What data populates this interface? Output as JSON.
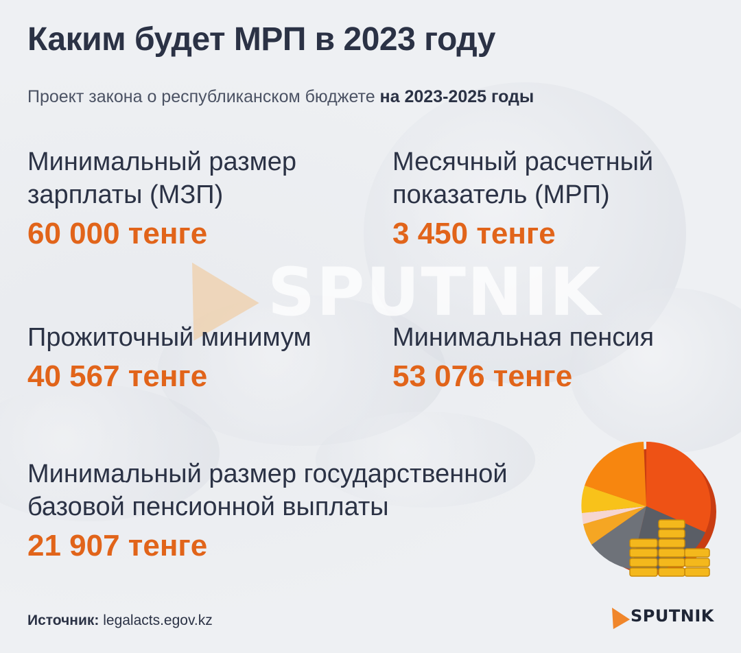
{
  "header": {
    "title": "Каким будет МРП в 2023 году",
    "subtitle_prefix": "Проект закона о республиканском бюджете ",
    "subtitle_bold": "на 2023-2025 годы"
  },
  "items": [
    {
      "label": "Минимальный размер зарплаты (МЗП)",
      "value": "60 000 тенге"
    },
    {
      "label": "Месячный расчетный показатель (МРП)",
      "value": "3 450 тенге"
    },
    {
      "label": "Прожиточный минимум",
      "value": "40 567 тенге"
    },
    {
      "label": "Минимальная пенсия",
      "value": "53 076 тенге"
    },
    {
      "label": "Минимальный размер государственной базовой пенсионной выплаты",
      "value": "21 907 тенге"
    }
  ],
  "watermark": "SPUTNIK",
  "footer": {
    "source_label": "Источник:",
    "source_value": "legalacts.egov.kz",
    "logo": "SPUTNIK"
  },
  "colors": {
    "accent": "#e1641a",
    "title": "#2b3245",
    "logo_arrow": "#f0862b"
  },
  "icons": [
    "pie-chart-coins-illustration",
    "sputnik-arrow-icon"
  ]
}
